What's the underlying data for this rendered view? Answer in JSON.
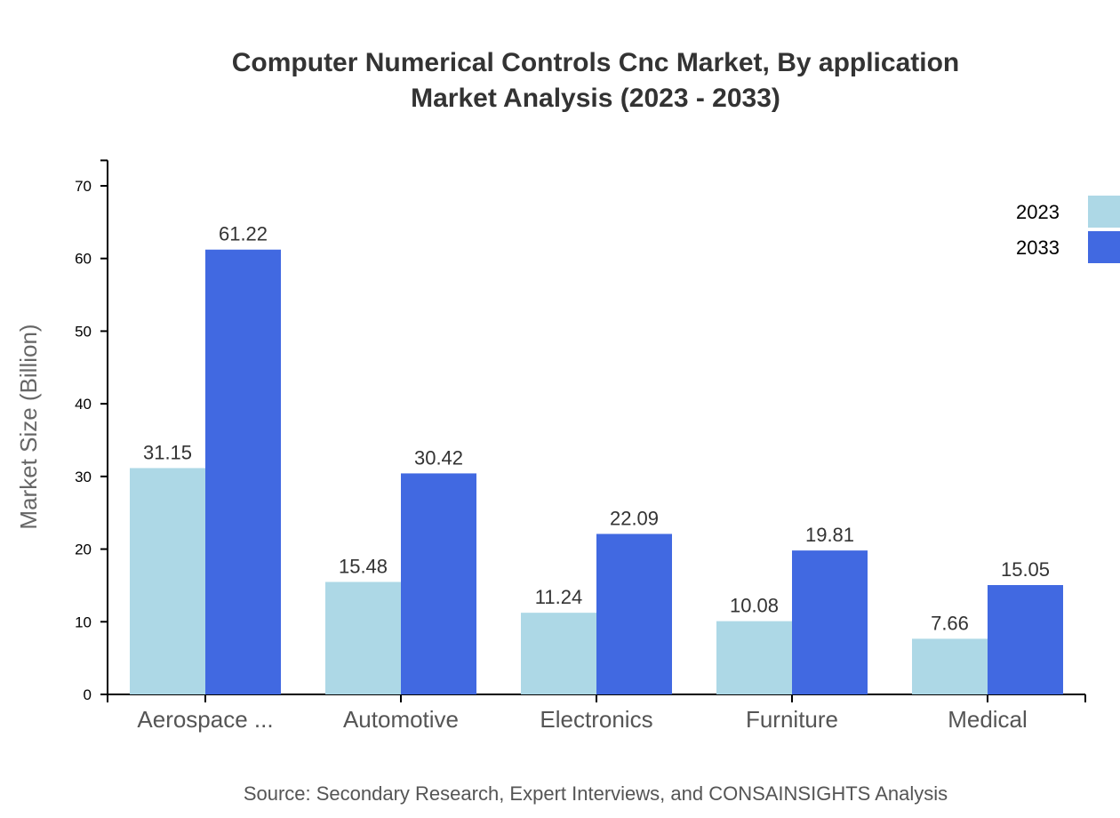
{
  "chart_data": {
    "type": "bar",
    "title": [
      "Computer Numerical Controls Cnc Market, By application",
      "Market Analysis (2023 - 2033)"
    ],
    "categories": [
      "Aerospace ...",
      "Automotive",
      "Electronics",
      "Furniture",
      "Medical"
    ],
    "series": [
      {
        "name": "2023",
        "color": "#ADD8E6",
        "values": [
          31.15,
          15.48,
          11.24,
          10.08,
          7.66
        ]
      },
      {
        "name": "2033",
        "color": "#4169E1",
        "values": [
          61.22,
          30.42,
          22.09,
          19.81,
          15.05
        ]
      }
    ],
    "xlabel": "",
    "ylabel": "Market Size (Billion)",
    "ylim": [
      0,
      73.5
    ],
    "yticks": [
      0,
      10,
      20,
      30,
      40,
      50,
      60,
      70
    ],
    "grid": false,
    "legend": "top-right",
    "source": "Source: Secondary Research, Expert Interviews, and CONSAINSIGHTS Analysis"
  }
}
